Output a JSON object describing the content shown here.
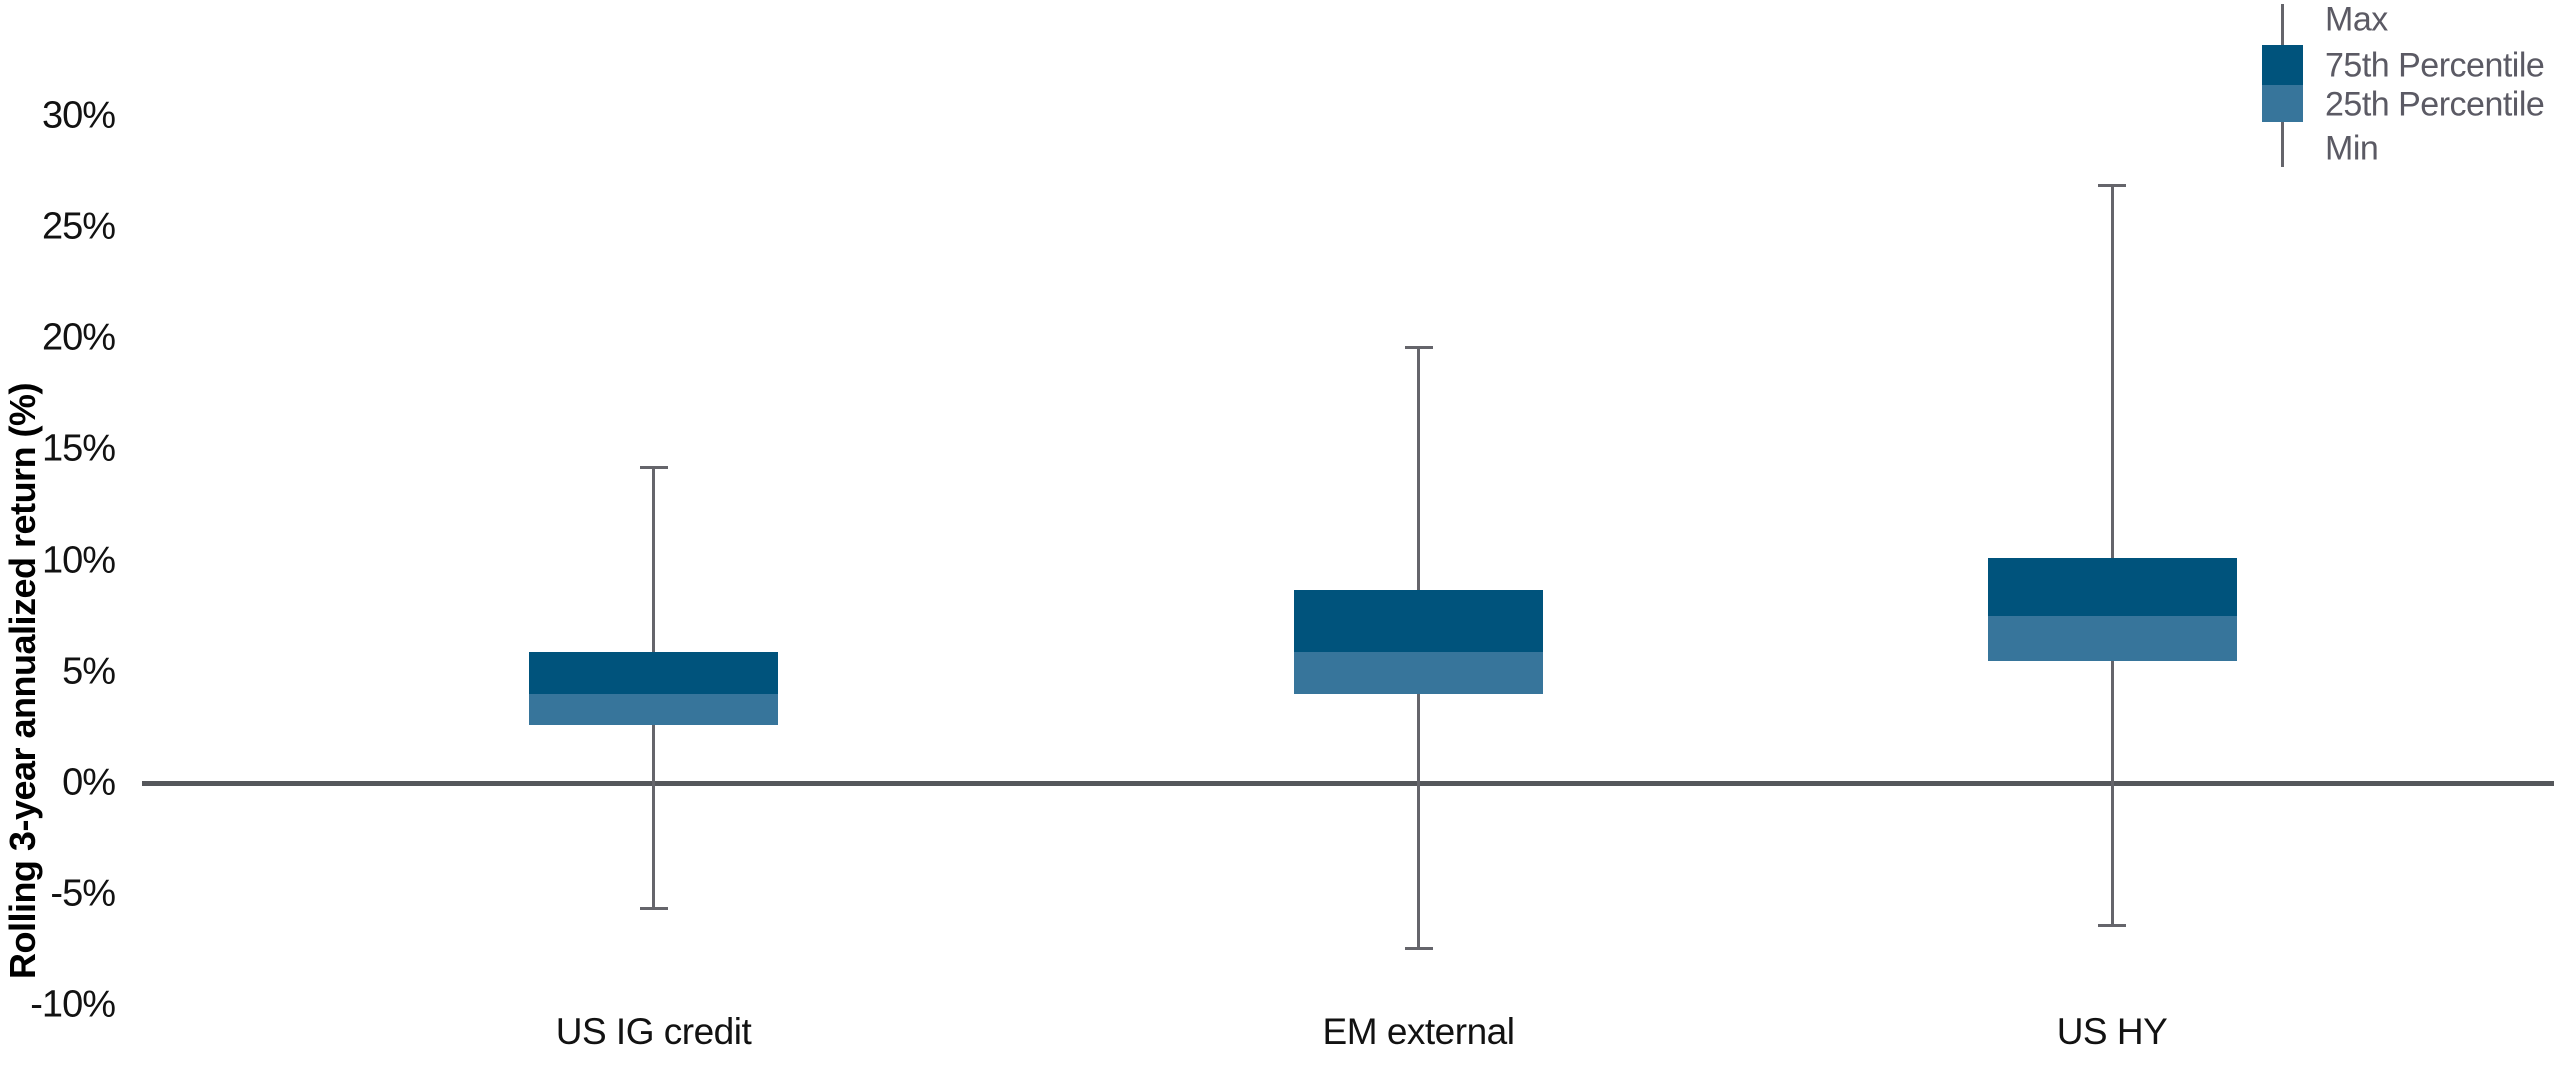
{
  "legend": {
    "items": [
      {
        "label": "Max"
      },
      {
        "label": "75th Percentile"
      },
      {
        "label": "25th Percentile"
      },
      {
        "label": "Min"
      }
    ],
    "text_color": "#5B5A64"
  },
  "chart_data": {
    "type": "box",
    "title": "",
    "xlabel": "",
    "ylabel": "Rolling 3-year annualized return (%)",
    "ylim": [
      -10,
      30
    ],
    "ytick_step": 5,
    "ytick_labels": [
      "30%",
      "25%",
      "20%",
      "15%",
      "10%",
      "5%",
      "0%",
      "-5%",
      "-10%"
    ],
    "grid": false,
    "legend_position": "top-right",
    "categories": [
      "US IG credit",
      "EM external",
      "US HY"
    ],
    "series": [
      {
        "category": "US IG credit",
        "max": 14.2,
        "p75": 5.9,
        "median": 4.0,
        "p25": 2.6,
        "min": -5.6
      },
      {
        "category": "EM external",
        "max": 19.6,
        "p75": 8.7,
        "median": 5.9,
        "p25": 4.0,
        "min": -7.4
      },
      {
        "category": "US HY",
        "max": 26.9,
        "p75": 10.1,
        "median": 7.5,
        "p25": 5.5,
        "min": -6.4
      }
    ],
    "colors": {
      "box_upper_75th": "#00537C",
      "box_lower_25th": "#37759B",
      "whisker": "#65656B",
      "axis_line": "#55575B"
    }
  }
}
